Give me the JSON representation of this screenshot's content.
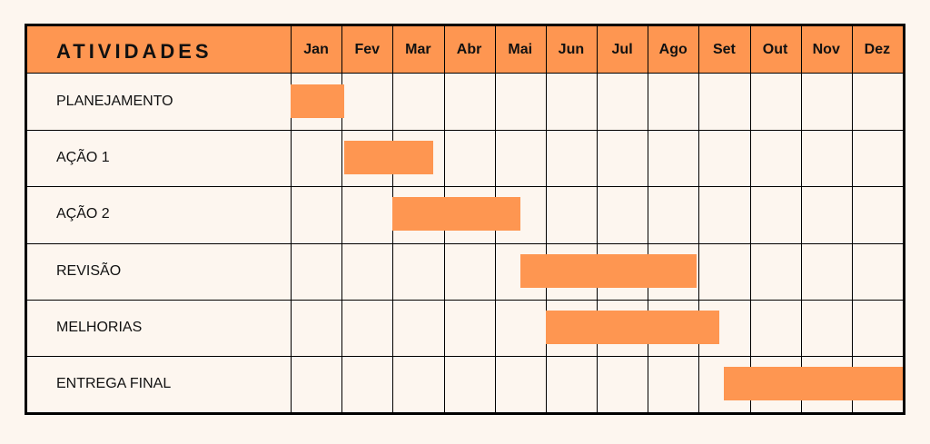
{
  "header": {
    "title": "ATIVIDADES"
  },
  "accent_color": "#fe9651",
  "chart_data": {
    "type": "gantt",
    "months": [
      "Jan",
      "Fev",
      "Mar",
      "Abr",
      "Mai",
      "Jun",
      "Jul",
      "Ago",
      "Set",
      "Out",
      "Nov",
      "Dez"
    ],
    "tasks": [
      {
        "name": "PLANEJAMENTO",
        "start": 0.0,
        "end": 1.05
      },
      {
        "name": "AÇÃO 1",
        "start": 1.05,
        "end": 2.8
      },
      {
        "name": "AÇÃO 2",
        "start": 2.0,
        "end": 4.5
      },
      {
        "name": "REVISÃO",
        "start": 4.5,
        "end": 7.95
      },
      {
        "name": "MELHORIAS",
        "start": 5.0,
        "end": 8.4
      },
      {
        "name": "ENTREGA FINAL",
        "start": 8.5,
        "end": 12.0
      }
    ]
  }
}
